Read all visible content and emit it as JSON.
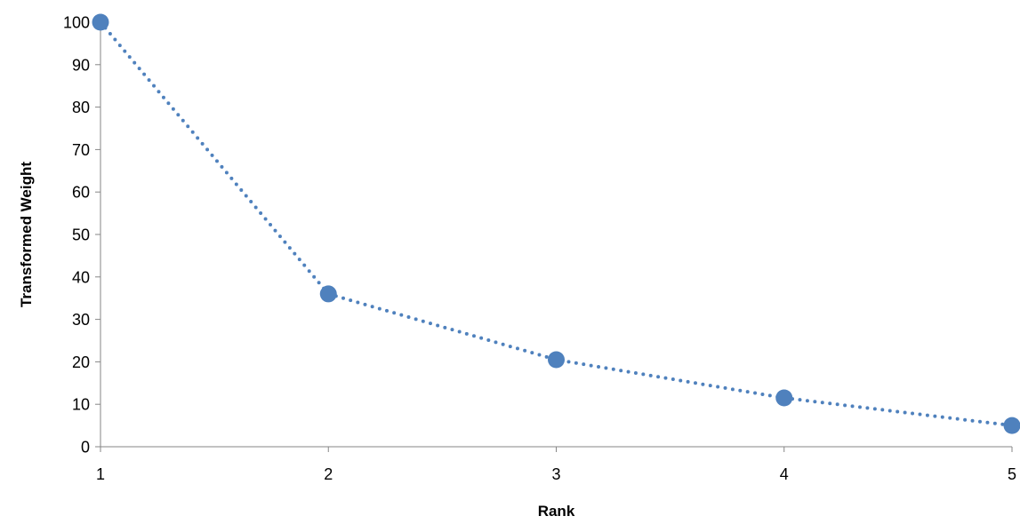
{
  "chart_data": {
    "type": "line",
    "title": "",
    "xlabel": "Rank",
    "ylabel": "Transformed Weight",
    "x": [
      1,
      2,
      3,
      4,
      5
    ],
    "series": [
      {
        "values": [
          100,
          36,
          20.5,
          11.5,
          5
        ]
      }
    ],
    "xlim": [
      1,
      5
    ],
    "ylim": [
      0,
      100
    ],
    "x_ticks": [
      "1",
      "2",
      "3",
      "4",
      "5"
    ],
    "y_ticks": [
      "0",
      "10",
      "20",
      "30",
      "40",
      "50",
      "60",
      "70",
      "80",
      "90",
      "100"
    ],
    "grid": false,
    "legend": "none",
    "line_style": "dotted",
    "color": "#4F81BD"
  }
}
